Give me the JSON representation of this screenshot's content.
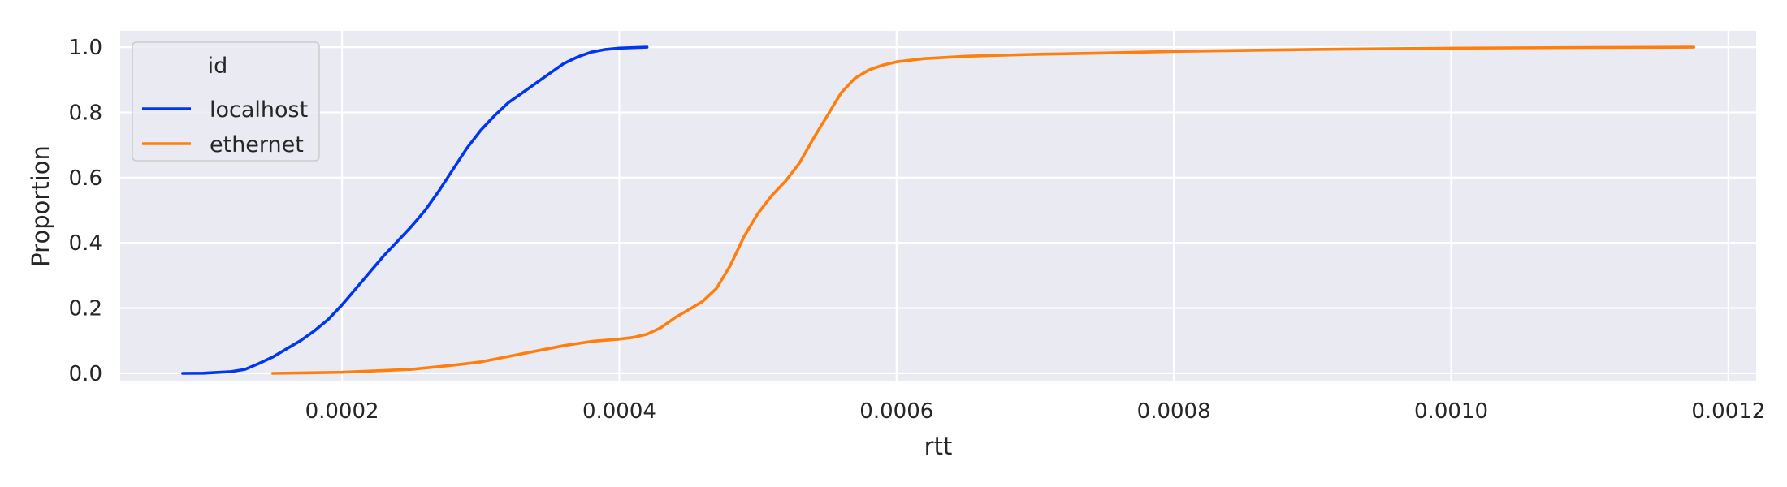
{
  "chart_data": {
    "type": "line",
    "xlabel": "rtt",
    "ylabel": "Proportion",
    "xlim": [
      4e-05,
      0.00122
    ],
    "ylim": [
      -0.025,
      1.05
    ],
    "xticks": [
      0.0002,
      0.0004,
      0.0006,
      0.0008,
      0.001,
      0.0012
    ],
    "xtick_labels": [
      "0.0002",
      "0.0004",
      "0.0006",
      "0.0008",
      "0.0010",
      "0.0012"
    ],
    "yticks": [
      0.0,
      0.2,
      0.4,
      0.6,
      0.8,
      1.0
    ],
    "ytick_labels": [
      "0.0",
      "0.2",
      "0.4",
      "0.6",
      "0.8",
      "1.0"
    ],
    "grid": true,
    "legend": {
      "title": "id",
      "placement": "top-left"
    },
    "background_color": "#eaeaf2",
    "grid_color": "#ffffff",
    "series": [
      {
        "name": "localhost",
        "color": "#0036ef",
        "points": [
          [
            8.5e-05,
            0.0
          ],
          [
            0.0001,
            0.0005
          ],
          [
            0.00012,
            0.005
          ],
          [
            0.00013,
            0.012
          ],
          [
            0.00014,
            0.03
          ],
          [
            0.00015,
            0.05
          ],
          [
            0.00016,
            0.075
          ],
          [
            0.00017,
            0.1
          ],
          [
            0.00018,
            0.13
          ],
          [
            0.00019,
            0.165
          ],
          [
            0.0002,
            0.21
          ],
          [
            0.00021,
            0.26
          ],
          [
            0.00022,
            0.31
          ],
          [
            0.00023,
            0.36
          ],
          [
            0.00024,
            0.405
          ],
          [
            0.00025,
            0.45
          ],
          [
            0.00026,
            0.5
          ],
          [
            0.00027,
            0.56
          ],
          [
            0.00028,
            0.625
          ],
          [
            0.00029,
            0.69
          ],
          [
            0.0003,
            0.745
          ],
          [
            0.00031,
            0.79
          ],
          [
            0.00032,
            0.83
          ],
          [
            0.00033,
            0.86
          ],
          [
            0.00034,
            0.89
          ],
          [
            0.00035,
            0.92
          ],
          [
            0.00036,
            0.95
          ],
          [
            0.00037,
            0.97
          ],
          [
            0.00038,
            0.985
          ],
          [
            0.00039,
            0.993
          ],
          [
            0.0004,
            0.997
          ],
          [
            0.00042,
            1.0
          ]
        ]
      },
      {
        "name": "ethernet",
        "color": "#ff7f0e",
        "points": [
          [
            0.00015,
            0.0
          ],
          [
            0.0002,
            0.003
          ],
          [
            0.00025,
            0.012
          ],
          [
            0.00028,
            0.025
          ],
          [
            0.0003,
            0.035
          ],
          [
            0.00033,
            0.06
          ],
          [
            0.00036,
            0.085
          ],
          [
            0.00038,
            0.098
          ],
          [
            0.0004,
            0.105
          ],
          [
            0.00041,
            0.11
          ],
          [
            0.00042,
            0.12
          ],
          [
            0.00043,
            0.14
          ],
          [
            0.00044,
            0.17
          ],
          [
            0.00045,
            0.195
          ],
          [
            0.00046,
            0.22
          ],
          [
            0.00047,
            0.26
          ],
          [
            0.00048,
            0.33
          ],
          [
            0.00049,
            0.42
          ],
          [
            0.0005,
            0.49
          ],
          [
            0.00051,
            0.545
          ],
          [
            0.00052,
            0.59
          ],
          [
            0.00053,
            0.645
          ],
          [
            0.00054,
            0.72
          ],
          [
            0.00055,
            0.79
          ],
          [
            0.00056,
            0.86
          ],
          [
            0.00057,
            0.905
          ],
          [
            0.00058,
            0.93
          ],
          [
            0.00059,
            0.945
          ],
          [
            0.0006,
            0.955
          ],
          [
            0.00062,
            0.965
          ],
          [
            0.00065,
            0.972
          ],
          [
            0.0007,
            0.978
          ],
          [
            0.00075,
            0.982
          ],
          [
            0.0008,
            0.987
          ],
          [
            0.0009,
            0.993
          ],
          [
            0.001,
            0.997
          ],
          [
            0.0011,
            0.999
          ],
          [
            0.001175,
            1.0
          ]
        ]
      }
    ]
  }
}
